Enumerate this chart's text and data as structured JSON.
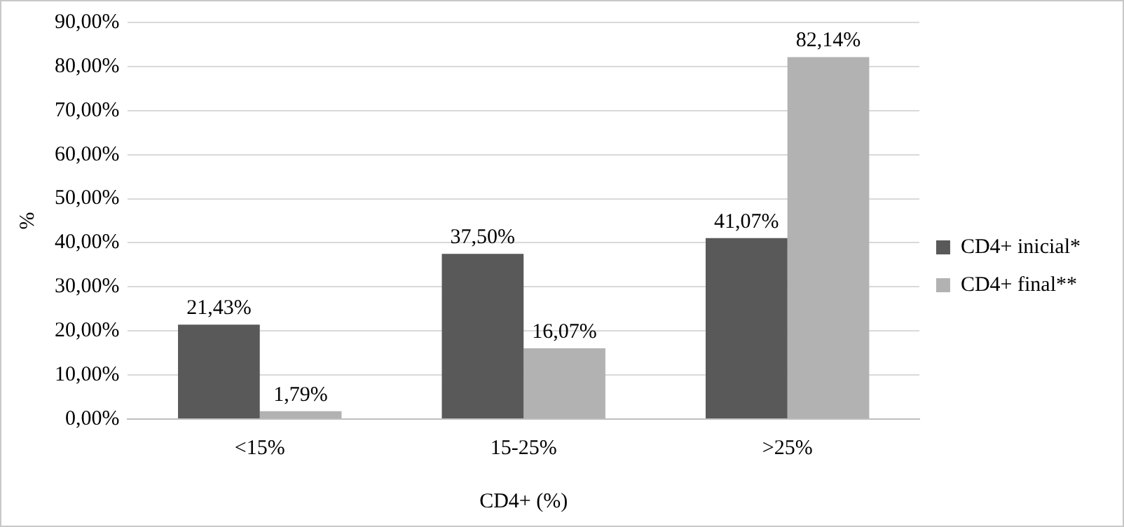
{
  "chart_data": {
    "type": "bar",
    "xlabel": "CD4+ (%)",
    "ylabel": "%",
    "categories": [
      "<15%",
      "15-25%",
      ">25%"
    ],
    "series": [
      {
        "name": "CD4+ inicial*",
        "color": "#595959",
        "values": [
          21.43,
          37.5,
          41.07
        ],
        "value_labels": [
          "21,43%",
          "37,50%",
          "41,07%"
        ]
      },
      {
        "name": "CD4+ final**",
        "color": "#b2b2b2",
        "values": [
          1.79,
          16.07,
          82.14
        ],
        "value_labels": [
          "1,79%",
          "16,07%",
          "82,14%"
        ]
      }
    ],
    "ylim": [
      0,
      90
    ],
    "yticks": [
      {
        "value": 0,
        "label": "0,00%"
      },
      {
        "value": 10,
        "label": "10,00%"
      },
      {
        "value": 20,
        "label": "20,00%"
      },
      {
        "value": 30,
        "label": "30,00%"
      },
      {
        "value": 40,
        "label": "40,00%"
      },
      {
        "value": 50,
        "label": "50,00%"
      },
      {
        "value": 60,
        "label": "60,00%"
      },
      {
        "value": 70,
        "label": "70,00%"
      },
      {
        "value": 80,
        "label": "80,00%"
      },
      {
        "value": 90,
        "label": "90,00%"
      }
    ],
    "grid": "y",
    "legend": "right"
  }
}
